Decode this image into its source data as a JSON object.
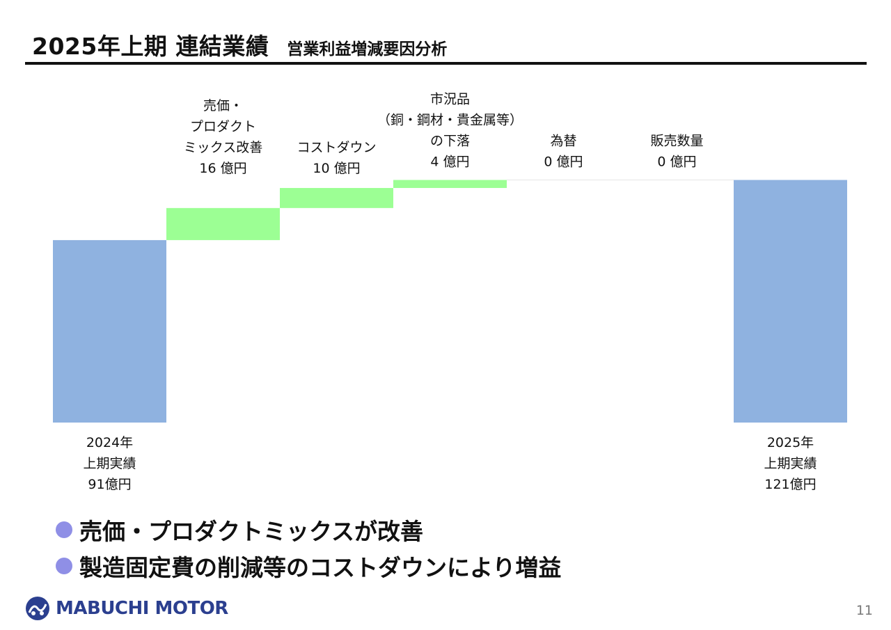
{
  "header": {
    "title": "2025年上期 連結業績",
    "subtitle": "営業利益増減要因分析"
  },
  "chart_data": {
    "type": "bar",
    "subtype": "waterfall",
    "unit": "億円",
    "colors": {
      "total": "#8fb2e0",
      "increase": "#9cff94"
    },
    "start": {
      "value": 91,
      "label_lines": [
        "2024年",
        "上期実績",
        "91億円"
      ]
    },
    "steps": [
      {
        "value": 16,
        "label_lines": [
          "売価・",
          "プロダクト",
          "ミックス改善",
          "16 億円"
        ]
      },
      {
        "value": 10,
        "label_lines": [
          "コストダウン",
          "10 億円"
        ]
      },
      {
        "value": 4,
        "label_lines": [
          "市況品",
          "（銅・鋼材・貴金属等）",
          "の下落",
          "4 億円"
        ]
      },
      {
        "value": 0,
        "label_lines": [
          "為替",
          "0 億円"
        ]
      },
      {
        "value": 0,
        "label_lines": [
          "販売数量",
          "0 億円"
        ]
      }
    ],
    "end": {
      "value": 121,
      "label_lines": [
        "2025年",
        "上期実績",
        "121億円"
      ]
    }
  },
  "bullets": [
    "売価・プロダクトミックスが改善",
    "製造固定費の削減等のコストダウンにより増益"
  ],
  "footer": {
    "logo_text": "MABUCHI MOTOR",
    "page_number": "11"
  }
}
